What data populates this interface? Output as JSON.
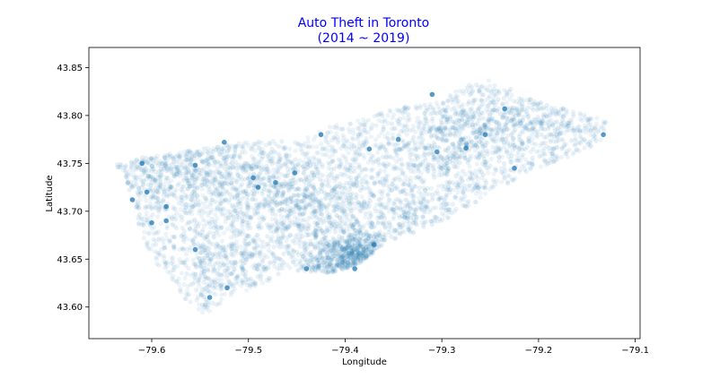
{
  "chart_data": {
    "type": "scatter",
    "title": "Auto Theft in Toronto",
    "subtitle": "(2014 ~ 2019)",
    "xlabel": "Longitude",
    "ylabel": "Latitude",
    "xlim": [
      -79.665,
      -79.095
    ],
    "ylim": [
      43.567,
      43.871
    ],
    "x_ticks": [
      -79.6,
      -79.5,
      -79.4,
      -79.3,
      -79.2,
      -79.1
    ],
    "x_tick_labels": [
      "−79.6",
      "−79.5",
      "−79.4",
      "−79.3",
      "−79.2",
      "−79.1"
    ],
    "y_ticks": [
      43.6,
      43.65,
      43.7,
      43.75,
      43.8,
      43.85
    ],
    "y_tick_labels": [
      "43.60",
      "43.65",
      "43.70",
      "43.75",
      "43.80",
      "43.85"
    ],
    "grid": false,
    "colors": {
      "points": "#1f77b4",
      "title": "#0000ff",
      "axes": "#000000"
    },
    "point_alpha": 0.08,
    "region_outline": [
      [
        -79.64,
        43.75
      ],
      [
        -79.61,
        43.757
      ],
      [
        -79.585,
        43.76
      ],
      [
        -79.55,
        43.765
      ],
      [
        -79.505,
        43.772
      ],
      [
        -79.455,
        43.775
      ],
      [
        -79.41,
        43.79
      ],
      [
        -79.355,
        43.805
      ],
      [
        -79.3,
        43.818
      ],
      [
        -79.27,
        43.833
      ],
      [
        -79.245,
        43.838
      ],
      [
        -79.215,
        43.82
      ],
      [
        -79.175,
        43.808
      ],
      [
        -79.13,
        43.795
      ],
      [
        -79.13,
        43.775
      ],
      [
        -79.16,
        43.76
      ],
      [
        -79.2,
        43.745
      ],
      [
        -79.24,
        43.725
      ],
      [
        -79.28,
        43.7
      ],
      [
        -79.32,
        43.68
      ],
      [
        -79.36,
        43.665
      ],
      [
        -79.385,
        43.645
      ],
      [
        -79.415,
        43.635
      ],
      [
        -79.45,
        43.638
      ],
      [
        -79.48,
        43.625
      ],
      [
        -79.515,
        43.612
      ],
      [
        -79.545,
        43.592
      ],
      [
        -79.56,
        43.6
      ],
      [
        -79.58,
        43.63
      ],
      [
        -79.6,
        43.65
      ],
      [
        -79.615,
        43.69
      ],
      [
        -79.625,
        43.725
      ]
    ],
    "hotspots": [
      {
        "x": -79.385,
        "y": 43.655,
        "weight": 1.4,
        "spread": 0.012
      },
      {
        "x": -79.41,
        "y": 43.645,
        "weight": 1.0,
        "spread": 0.015
      },
      {
        "x": -79.59,
        "y": 43.74,
        "weight": 0.9,
        "spread": 0.02
      },
      {
        "x": -79.53,
        "y": 43.745,
        "weight": 0.7,
        "spread": 0.02
      },
      {
        "x": -79.47,
        "y": 43.72,
        "weight": 0.8,
        "spread": 0.025
      },
      {
        "x": -79.43,
        "y": 43.7,
        "weight": 0.8,
        "spread": 0.025
      },
      {
        "x": -79.29,
        "y": 43.77,
        "weight": 0.7,
        "spread": 0.025
      },
      {
        "x": -79.26,
        "y": 43.79,
        "weight": 0.6,
        "spread": 0.02
      },
      {
        "x": -79.2,
        "y": 43.79,
        "weight": 0.5,
        "spread": 0.02
      },
      {
        "x": -79.52,
        "y": 43.64,
        "weight": 0.5,
        "spread": 0.02
      },
      {
        "x": -79.33,
        "y": 43.7,
        "weight": 0.5,
        "spread": 0.02
      }
    ],
    "highlighted_points": [
      [
        -79.62,
        43.712
      ],
      [
        -79.605,
        43.72
      ],
      [
        -79.585,
        43.705
      ],
      [
        -79.6,
        43.688
      ],
      [
        -79.585,
        43.69
      ],
      [
        -79.61,
        43.75
      ],
      [
        -79.555,
        43.748
      ],
      [
        -79.525,
        43.772
      ],
      [
        -79.495,
        43.735
      ],
      [
        -79.49,
        43.725
      ],
      [
        -79.472,
        43.73
      ],
      [
        -79.452,
        43.74
      ],
      [
        -79.425,
        43.78
      ],
      [
        -79.375,
        43.765
      ],
      [
        -79.345,
        43.775
      ],
      [
        -79.305,
        43.762
      ],
      [
        -79.275,
        43.766
      ],
      [
        -79.255,
        43.78
      ],
      [
        -79.225,
        43.745
      ],
      [
        -79.133,
        43.78
      ],
      [
        -79.555,
        43.66
      ],
      [
        -79.54,
        43.61
      ],
      [
        -79.522,
        43.62
      ],
      [
        -79.44,
        43.64
      ],
      [
        -79.39,
        43.64
      ],
      [
        -79.37,
        43.665
      ],
      [
        -79.235,
        43.807
      ],
      [
        -79.31,
        43.822
      ]
    ]
  }
}
